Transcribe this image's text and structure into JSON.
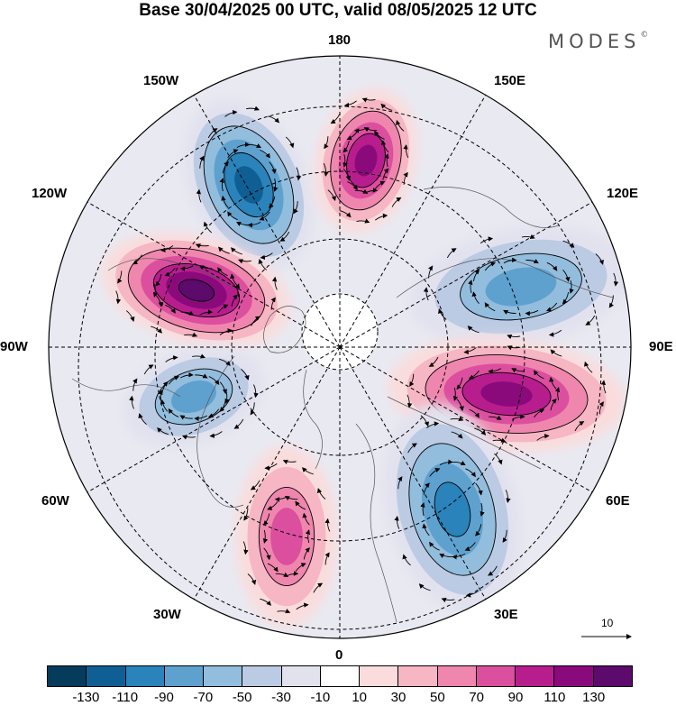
{
  "title": "Base 30/04/2025 00 UTC, valid 08/05/2025 12 UTC",
  "brand": "MODES",
  "brand_mark": "©",
  "longitude_labels": {
    "top": "180",
    "bottom": "0",
    "left": "90W",
    "right": "90E",
    "upper_left_1": "150W",
    "upper_left_2": "120W",
    "upper_right_1": "150E",
    "upper_right_2": "120E",
    "lower_left_1": "60W",
    "lower_left_2": "30W",
    "lower_right_1": "60E",
    "lower_right_2": "30E"
  },
  "vector_scale": {
    "label": "10"
  },
  "colorbar": {
    "colors": [
      "#073b5c",
      "#0f5f95",
      "#2a83ba",
      "#5ea1cf",
      "#93bddd",
      "#bccbe4",
      "#e2e2ef",
      "#ffffff",
      "#fadcdc",
      "#f6b6c3",
      "#ef86ae",
      "#db4f9e",
      "#b81d8e",
      "#8a0a7c",
      "#5c0a6b"
    ],
    "ticks": [
      "-130",
      "-110",
      "-90",
      "-70",
      "-50",
      "-30",
      "-10",
      "10",
      "30",
      "50",
      "70",
      "90",
      "110",
      "130"
    ]
  },
  "anomaly_centers": [
    {
      "sign": "neg",
      "level": 5
    },
    {
      "sign": "pos",
      "level": 5
    },
    {
      "sign": "pos",
      "level": 6
    },
    {
      "sign": "neg",
      "level": 3
    },
    {
      "sign": "pos",
      "level": 5
    },
    {
      "sign": "neg",
      "level": 4
    },
    {
      "sign": "pos",
      "level": 3
    },
    {
      "sign": "neg",
      "level": 3
    }
  ]
}
